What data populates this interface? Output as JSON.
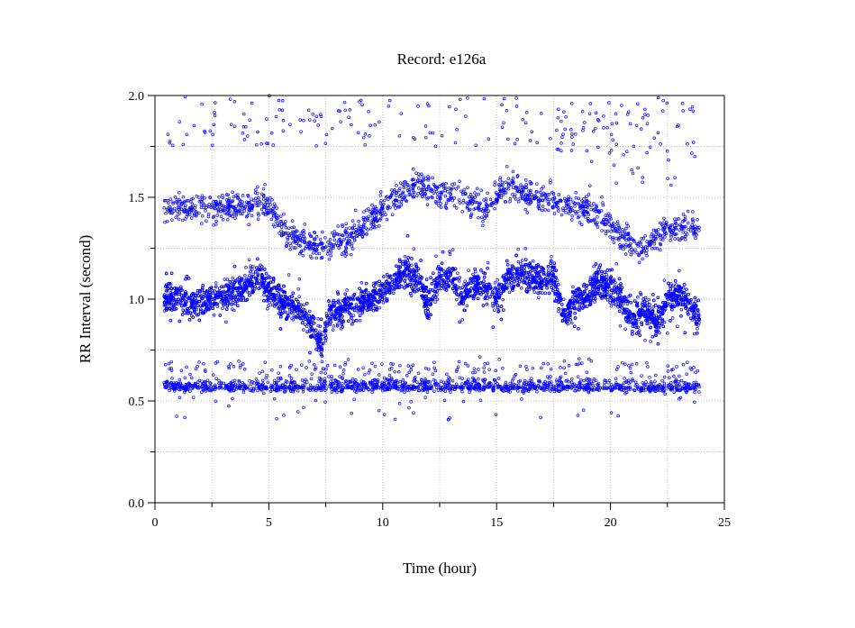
{
  "chart_data": {
    "type": "scatter",
    "title": "Record:  e126a",
    "xlabel": "Time (hour)",
    "ylabel": "RR Interval (second)",
    "xlim": [
      0,
      25
    ],
    "ylim": [
      0,
      2.0
    ],
    "xticks": [
      {
        "value": 0,
        "label": "0"
      },
      {
        "value": 5,
        "label": "5"
      },
      {
        "value": 10,
        "label": "10"
      },
      {
        "value": 15,
        "label": "15"
      },
      {
        "value": 20,
        "label": "20"
      },
      {
        "value": 25,
        "label": "25"
      }
    ],
    "yticks": [
      {
        "value": 0,
        "label": "0.0"
      },
      {
        "value": 0.5,
        "label": "0.5"
      },
      {
        "value": 1.0,
        "label": "1.0"
      },
      {
        "value": 1.5,
        "label": "1.5"
      },
      {
        "value": 2.0,
        "label": "2.0"
      }
    ],
    "x_minor_step": 2.5,
    "y_minor_step": 0.25,
    "grid": true,
    "marker_color": "#0000ff",
    "series": [
      {
        "x_range": [
          0.4,
          23.9
        ],
        "main_band_trend": [
          [
            0.4,
            1.02
          ],
          [
            1.0,
            1.0
          ],
          [
            1.5,
            0.97
          ],
          [
            2.5,
            1.0
          ],
          [
            3.5,
            1.03
          ],
          [
            4.0,
            1.06
          ],
          [
            4.5,
            1.12
          ],
          [
            5.0,
            1.06
          ],
          [
            5.5,
            0.98
          ],
          [
            6.0,
            0.97
          ],
          [
            6.5,
            0.93
          ],
          [
            7.0,
            0.85
          ],
          [
            7.3,
            0.76
          ],
          [
            7.6,
            0.93
          ],
          [
            8.5,
            0.96
          ],
          [
            9.5,
            1.0
          ],
          [
            10.5,
            1.08
          ],
          [
            11.0,
            1.14
          ],
          [
            11.5,
            1.1
          ],
          [
            12.0,
            0.98
          ],
          [
            12.5,
            1.1
          ],
          [
            13.0,
            1.12
          ],
          [
            13.5,
            1.0
          ],
          [
            14.0,
            1.06
          ],
          [
            14.5,
            1.08
          ],
          [
            15.0,
            1.0
          ],
          [
            15.5,
            1.1
          ],
          [
            16.0,
            1.14
          ],
          [
            17.0,
            1.08
          ],
          [
            17.5,
            1.12
          ],
          [
            18.0,
            0.9
          ],
          [
            18.5,
            1.0
          ],
          [
            19.0,
            1.02
          ],
          [
            19.5,
            1.08
          ],
          [
            20.0,
            1.06
          ],
          [
            20.5,
            1.0
          ],
          [
            21.0,
            0.9
          ],
          [
            21.5,
            0.95
          ],
          [
            22.0,
            0.88
          ],
          [
            22.5,
            1.0
          ],
          [
            23.0,
            1.03
          ],
          [
            23.5,
            0.98
          ],
          [
            23.9,
            0.9
          ]
        ],
        "upper_band_trend": [
          [
            0.4,
            1.45
          ],
          [
            2.0,
            1.45
          ],
          [
            3.0,
            1.44
          ],
          [
            4.0,
            1.46
          ],
          [
            4.8,
            1.48
          ],
          [
            6.0,
            1.3
          ],
          [
            7.5,
            1.25
          ],
          [
            8.5,
            1.3
          ],
          [
            9.5,
            1.4
          ],
          [
            10.5,
            1.5
          ],
          [
            11.5,
            1.56
          ],
          [
            12.5,
            1.52
          ],
          [
            13.5,
            1.5
          ],
          [
            14.5,
            1.45
          ],
          [
            15.5,
            1.56
          ],
          [
            16.5,
            1.5
          ],
          [
            17.5,
            1.48
          ],
          [
            18.5,
            1.45
          ],
          [
            19.5,
            1.42
          ],
          [
            20.5,
            1.3
          ],
          [
            21.5,
            1.25
          ],
          [
            22.5,
            1.35
          ],
          [
            23.9,
            1.35
          ]
        ],
        "lower_band_level": 0.57
      }
    ]
  }
}
